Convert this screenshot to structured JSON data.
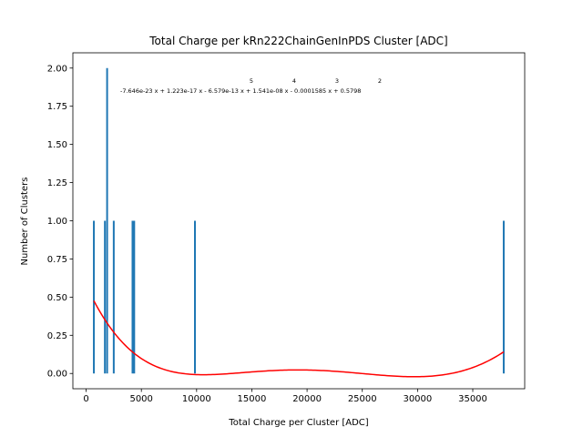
{
  "chart_data": {
    "type": "bar",
    "title": "Total Charge per kRn222ChainGenInPDS Cluster [ADC]",
    "xlabel": "Total Charge per Cluster [ADC]",
    "ylabel": "Number of Clusters",
    "xlim": [
      -1200,
      39700
    ],
    "ylim": [
      -0.1,
      2.1
    ],
    "xticks": [
      0,
      5000,
      10000,
      15000,
      20000,
      25000,
      30000,
      35000
    ],
    "xtick_labels": [
      "0",
      "5000",
      "10000",
      "15000",
      "20000",
      "25000",
      "30000",
      "35000"
    ],
    "yticks": [
      0,
      0.25,
      0.5,
      0.75,
      1.0,
      1.25,
      1.5,
      1.75,
      2.0
    ],
    "ytick_labels": [
      "0.00",
      "0.25",
      "0.50",
      "0.75",
      "1.00",
      "1.25",
      "1.50",
      "1.75",
      "2.00"
    ],
    "bar_color": "#1f77b4",
    "bars": [
      {
        "x": 700,
        "count": 1
      },
      {
        "x": 1700,
        "count": 1
      },
      {
        "x": 1900,
        "count": 2
      },
      {
        "x": 2500,
        "count": 1
      },
      {
        "x": 4200,
        "count": 1
      },
      {
        "x": 4350,
        "count": 1
      },
      {
        "x": 9850,
        "count": 1
      },
      {
        "x": 37800,
        "count": 1
      }
    ],
    "fit": {
      "color": "#ff0000",
      "x_range": [
        700,
        37800
      ],
      "coefficients": [
        -7.646e-23,
        1.223e-17,
        -6.579e-13,
        1.541e-08,
        -0.0001585,
        0.5798
      ],
      "label": "-7.646e-23 x + 1.223e-17 x - 6.579e-13 x + 1.541e-08 x - 0.0001585 x + 0.5798",
      "exponents": [
        "5",
        "4",
        "3",
        "2"
      ]
    }
  }
}
